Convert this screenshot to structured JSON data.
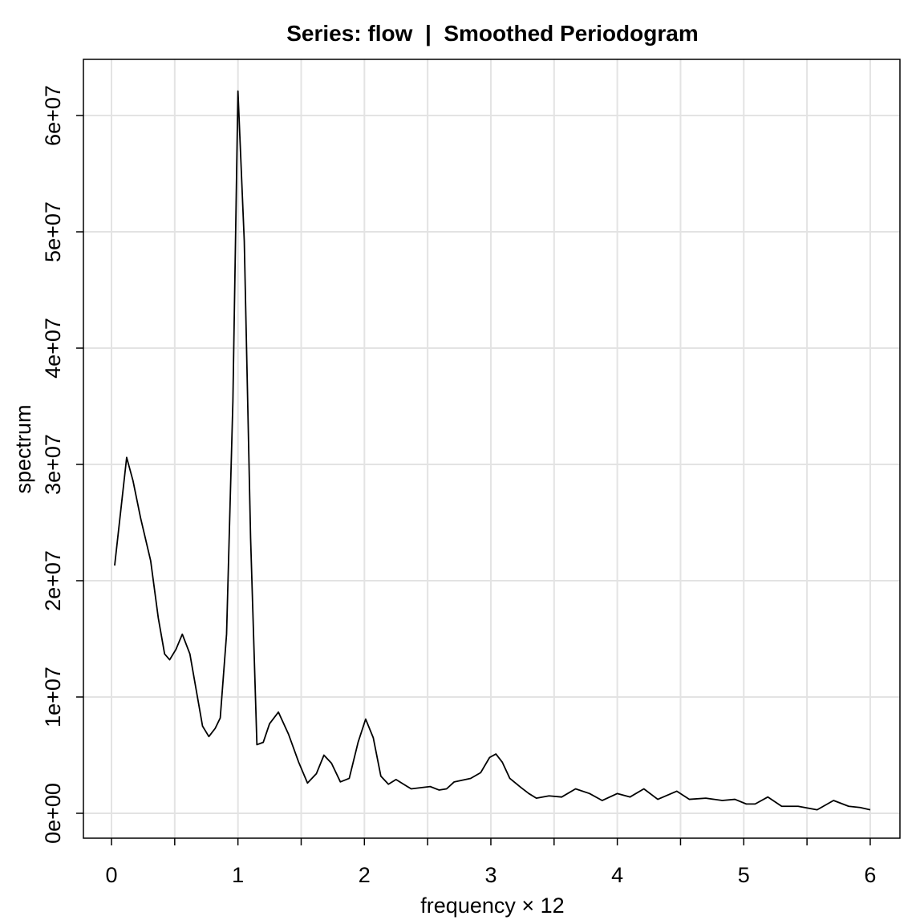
{
  "chart_data": {
    "type": "line",
    "title": "Series: flow  |  Smoothed Periodogram",
    "x_label": "frequency × 12",
    "y_label": "spectrum",
    "color": "#000000",
    "x": [
      0.025,
      0.12,
      0.17,
      0.23,
      0.31,
      0.37,
      0.42,
      0.46,
      0.51,
      0.56,
      0.62,
      0.67,
      0.72,
      0.77,
      0.82,
      0.86,
      0.91,
      0.96,
      1.0,
      1.05,
      1.1,
      1.15,
      1.2,
      1.25,
      1.32,
      1.4,
      1.48,
      1.55,
      1.62,
      1.68,
      1.74,
      1.81,
      1.88,
      1.95,
      2.01,
      2.07,
      2.13,
      2.19,
      2.25,
      2.31,
      2.37,
      2.52,
      2.59,
      2.65,
      2.71,
      2.84,
      2.92,
      2.99,
      3.04,
      3.09,
      3.15,
      3.24,
      3.3,
      3.36,
      3.46,
      3.56,
      3.67,
      3.78,
      3.88,
      4.0,
      4.1,
      4.21,
      4.32,
      4.47,
      4.57,
      4.7,
      4.83,
      4.93,
      5.02,
      5.09,
      5.19,
      5.3,
      5.43,
      5.58,
      5.71,
      5.83,
      5.92,
      6.0
    ],
    "values": [
      21300000,
      30600000,
      28600000,
      25400000,
      21700000,
      16800000,
      13700000,
      13200000,
      14100000,
      15400000,
      13700000,
      10600000,
      7500000,
      6600000,
      7300000,
      8200000,
      15400000,
      35400000,
      62100000,
      49200000,
      23700000,
      5900000,
      6100000,
      7700000,
      8700000,
      6800000,
      4400000,
      2600000,
      3400000,
      5000000,
      4300000,
      2700000,
      3000000,
      6100000,
      8100000,
      6500000,
      3200000,
      2500000,
      2900000,
      2500000,
      2100000,
      2300000,
      2000000,
      2100000,
      2700000,
      3000000,
      3500000,
      4800000,
      5100000,
      4400000,
      3000000,
      2200000,
      1700000,
      1300000,
      1500000,
      1400000,
      2100000,
      1700000,
      1100000,
      1700000,
      1400000,
      2100000,
      1200000,
      1900000,
      1200000,
      1300000,
      1100000,
      1200000,
      800000,
      800000,
      1400000,
      600000,
      600000,
      300000,
      1100000,
      600000,
      500000,
      300000
    ],
    "xlim": [
      -0.222,
      6.235
    ],
    "ylim": [
      -2140000,
      64830000
    ],
    "xticks": [
      0,
      1,
      2,
      3,
      4,
      5,
      6
    ],
    "xminor": [
      0.5,
      1.5,
      2.5,
      3.5,
      4.5,
      5.5
    ],
    "yticks": [
      {
        "value": 0,
        "label": "0e+00"
      },
      {
        "value": 10000000,
        "label": "1e+07"
      },
      {
        "value": 20000000,
        "label": "2e+07"
      },
      {
        "value": 30000000,
        "label": "3e+07"
      },
      {
        "value": 40000000,
        "label": "4e+07"
      },
      {
        "value": 50000000,
        "label": "5e+07"
      },
      {
        "value": 60000000,
        "label": "6e+07"
      }
    ],
    "grid": true
  }
}
